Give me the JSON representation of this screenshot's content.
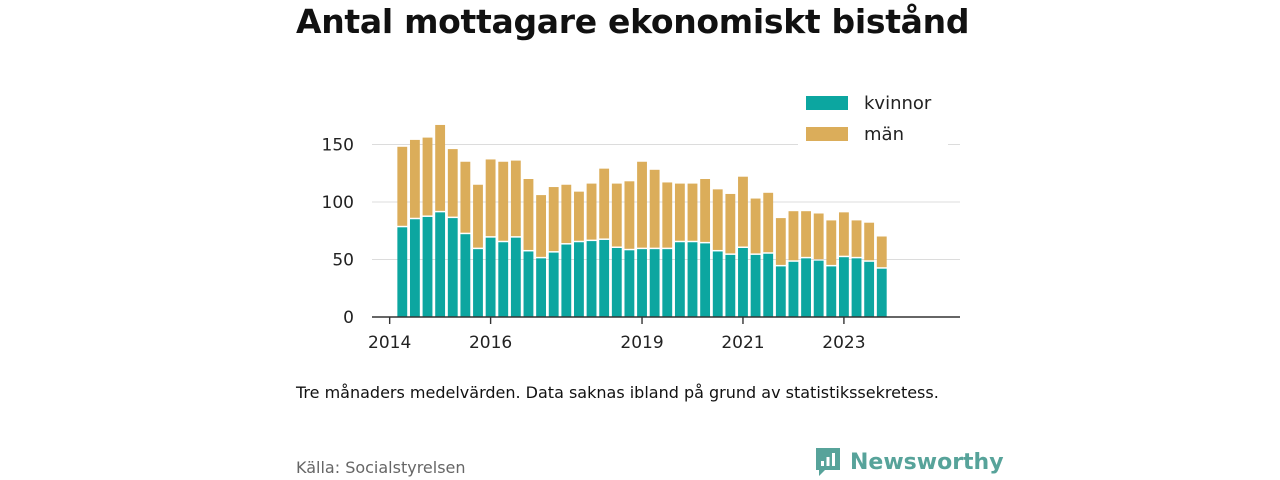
{
  "title": "Antal mottagare ekonomiskt bistånd",
  "note": "Tre månaders medelvärden. Data saknas ibland på grund av statistikssekretess.",
  "source": "Källa: Socialstyrelsen",
  "brand": "Newsworthy",
  "colors": {
    "kvinnor": "#0ca6a0",
    "man": "#dbad5a",
    "brand": "#57a39a",
    "grid": "#dcdcdc",
    "axis": "#333333"
  },
  "chart_data": {
    "type": "bar",
    "stacked": true,
    "grid": true,
    "legend_position": "top-right",
    "ylim": [
      0,
      180
    ],
    "yticks": [
      0,
      50,
      100,
      150
    ],
    "x_range": [
      2013.65,
      2025.3
    ],
    "xticks": [
      {
        "value": 2014,
        "label": "2014"
      },
      {
        "value": 2016,
        "label": "2016"
      },
      {
        "value": 2019,
        "label": "2019"
      },
      {
        "value": 2021,
        "label": "2021"
      },
      {
        "value": 2023,
        "label": "2023"
      }
    ],
    "x": [
      2014.25,
      2014.5,
      2014.75,
      2015.0,
      2015.25,
      2015.5,
      2015.75,
      2016.0,
      2016.25,
      2016.5,
      2016.75,
      2017.0,
      2017.25,
      2017.5,
      2017.75,
      2018.0,
      2018.25,
      2018.5,
      2018.75,
      2019.0,
      2019.25,
      2019.5,
      2019.75,
      2020.0,
      2020.25,
      2020.5,
      2020.75,
      2021.0,
      2021.25,
      2021.5,
      2021.75,
      2022.0,
      2022.25,
      2022.5,
      2022.75,
      2023.0,
      2023.25,
      2023.5,
      2023.75
    ],
    "series": [
      {
        "name": "kvinnor",
        "color": "#0ca6a0",
        "values": [
          78,
          85,
          87,
          91,
          86,
          72,
          59,
          69,
          65,
          69,
          57,
          51,
          56,
          63,
          65,
          66,
          67,
          60,
          58,
          59,
          59,
          59,
          65,
          65,
          64,
          57,
          54,
          60,
          54,
          55,
          44,
          48,
          51,
          49,
          44,
          52,
          51,
          48,
          42
        ]
      },
      {
        "name": "män",
        "color": "#dbad5a",
        "values": [
          70,
          69,
          69,
          76,
          60,
          63,
          56,
          68,
          70,
          67,
          63,
          55,
          57,
          52,
          44,
          50,
          62,
          56,
          60,
          76,
          69,
          58,
          51,
          51,
          56,
          54,
          53,
          62,
          49,
          53,
          42,
          44,
          41,
          41,
          40,
          39,
          33,
          34,
          28
        ]
      }
    ]
  }
}
